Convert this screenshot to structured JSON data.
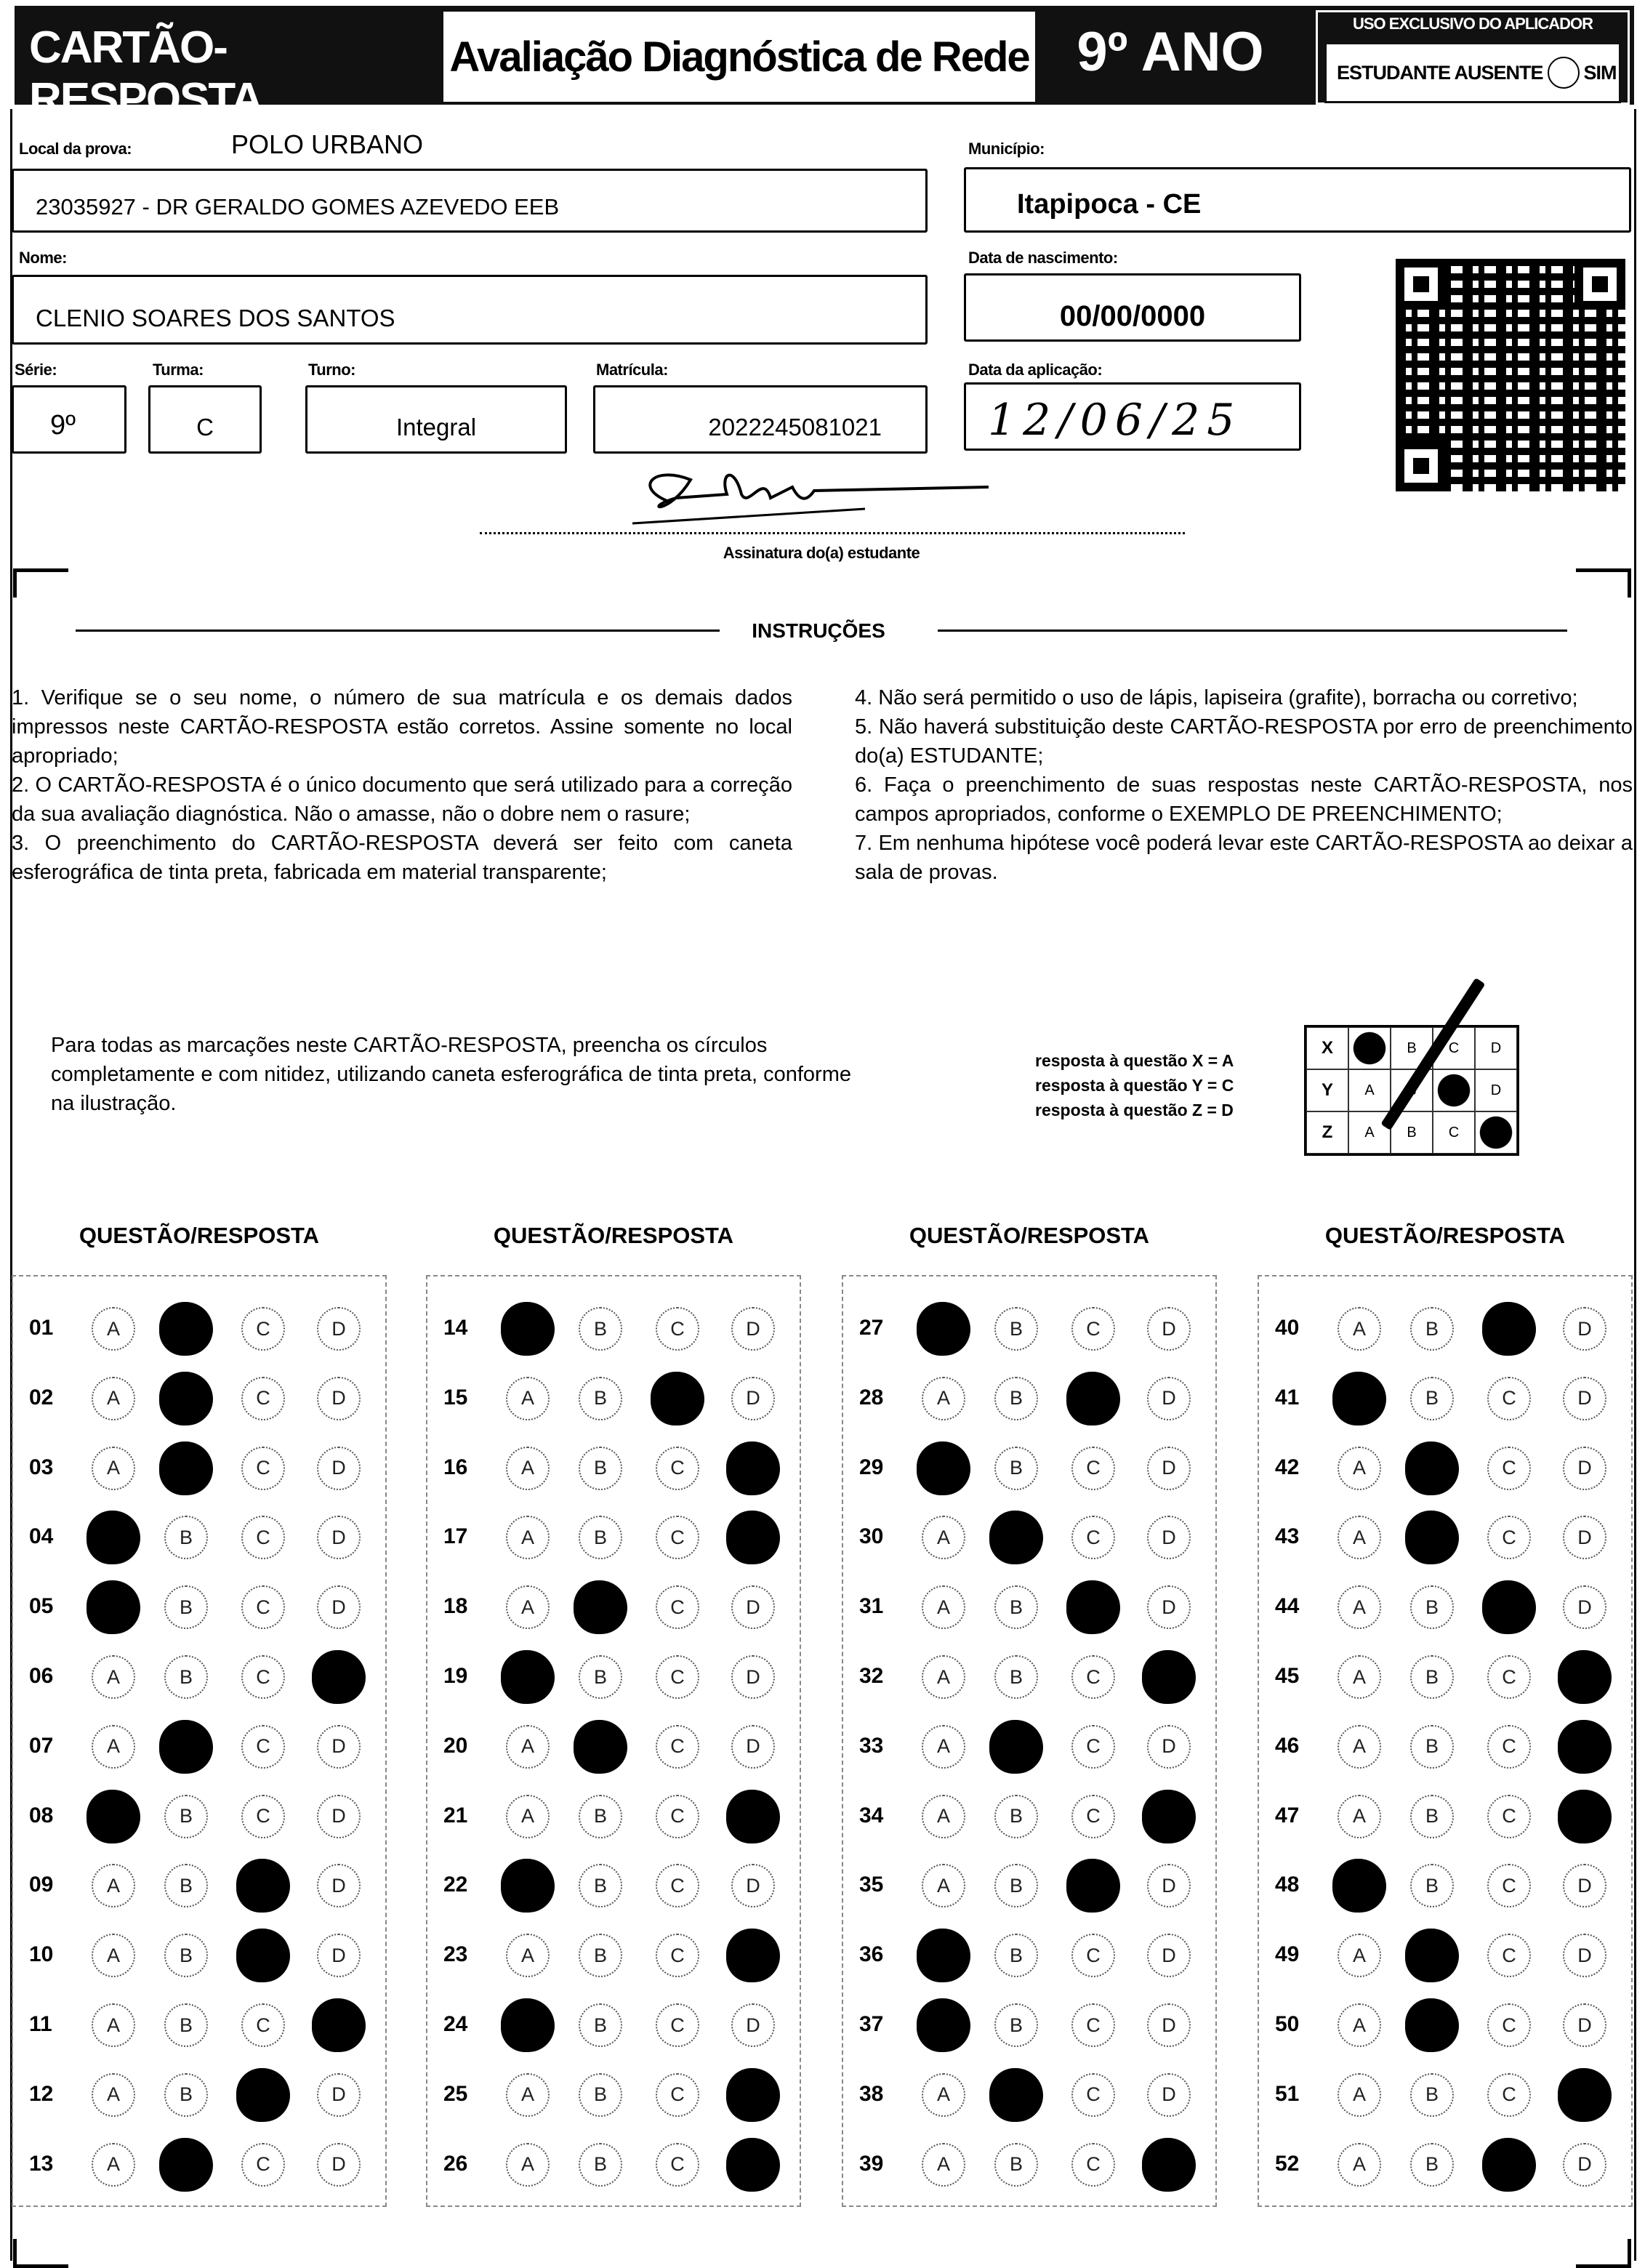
{
  "header": {
    "title": "CARTÃO-RESPOSTA",
    "exam": "Avaliação Diagnóstica de Rede",
    "grade": "9º ANO",
    "applicator_title": "USO EXCLUSIVO DO APLICADOR",
    "absent_label": "ESTUDANTE AUSENTE",
    "absent_option": "SIM"
  },
  "fields": {
    "local_label": "Local da prova:",
    "local_value": "POLO URBANO",
    "school": "23035927 - DR GERALDO GOMES AZEVEDO EEB",
    "municipio_label": "Município:",
    "municipio": "Itapipoca - CE",
    "nome_label": "Nome:",
    "nome": "CLENIO SOARES DOS SANTOS",
    "nascimento_label": "Data de nascimento:",
    "nascimento": "00/00/0000",
    "serie_label": "Série:",
    "serie": "9º",
    "turma_label": "Turma:",
    "turma": "C",
    "turno_label": "Turno:",
    "turno": "Integral",
    "matricula_label": "Matrícula:",
    "matricula": "2022245081021",
    "aplicacao_label": "Data da aplicação:",
    "aplicacao": "12/06/25",
    "assinatura_label": "Assinatura do(a) estudante"
  },
  "instructions": {
    "title": "INSTRUÇÕES",
    "left": "1. Verifique se o seu nome, o número de sua matrícula e os demais dados impressos neste CARTÃO-RESPOSTA estão corretos. Assine somente no local apropriado;\n2. O CARTÃO-RESPOSTA é o único documento que será utilizado para a correção da sua avaliação diagnóstica. Não o amasse, não o dobre nem o rasure;\n3. O preenchimento do CARTÃO-RESPOSTA deverá ser feito com caneta esferográfica de tinta preta, fabricada em material transparente;",
    "right": "4. Não será permitido o uso de lápis, lapiseira (grafite), borracha ou corretivo;\n5. Não haverá substituição deste CARTÃO-RESPOSTA por erro de preenchimento do(a) ESTUDANTE;\n6. Faça o preenchimento de suas respostas neste CARTÃO-RESPOSTA, nos campos apropriados, conforme o EXEMPLO DE PREENCHIMENTO;\n7. Em nenhuma hipótese você poderá levar este CARTÃO-RESPOSTA ao deixar a sala de provas.",
    "fill": "Para todas as marcações neste CARTÃO-RESPOSTA, preencha os círculos completamente e com nitidez, utilizando caneta esferográfica de tinta preta, conforme na ilustração.",
    "example_lines": [
      "resposta à questão X = A",
      "resposta à questão Y = C",
      "resposta à questão Z = D"
    ],
    "example_rows": [
      {
        "q": "X",
        "options": [
          "A",
          "B",
          "C",
          "D"
        ],
        "marked": "A"
      },
      {
        "q": "Y",
        "options": [
          "A",
          "B",
          "C",
          "D"
        ],
        "marked": "C"
      },
      {
        "q": "Z",
        "options": [
          "A",
          "B",
          "C",
          "D"
        ],
        "marked": "D"
      }
    ]
  },
  "answers": {
    "column_header": "QUESTÃO/RESPOSTA",
    "options": [
      "A",
      "B",
      "C",
      "D"
    ],
    "columns": [
      [
        [
          "01",
          "B"
        ],
        [
          "02",
          "B"
        ],
        [
          "03",
          "B"
        ],
        [
          "04",
          "A"
        ],
        [
          "05",
          "A"
        ],
        [
          "06",
          "D"
        ],
        [
          "07",
          "B"
        ],
        [
          "08",
          "A"
        ],
        [
          "09",
          "C"
        ],
        [
          "10",
          "C"
        ],
        [
          "11",
          "D"
        ],
        [
          "12",
          "C"
        ],
        [
          "13",
          "B"
        ]
      ],
      [
        [
          "14",
          "A"
        ],
        [
          "15",
          "C"
        ],
        [
          "16",
          "D"
        ],
        [
          "17",
          "D"
        ],
        [
          "18",
          "B"
        ],
        [
          "19",
          "A"
        ],
        [
          "20",
          "B"
        ],
        [
          "21",
          "D"
        ],
        [
          "22",
          "A"
        ],
        [
          "23",
          "D"
        ],
        [
          "24",
          "A"
        ],
        [
          "25",
          "D"
        ],
        [
          "26",
          "D"
        ]
      ],
      [
        [
          "27",
          "A"
        ],
        [
          "28",
          "C"
        ],
        [
          "29",
          "A"
        ],
        [
          "30",
          "B"
        ],
        [
          "31",
          "C"
        ],
        [
          "32",
          "D"
        ],
        [
          "33",
          "B"
        ],
        [
          "34",
          "D"
        ],
        [
          "35",
          "C"
        ],
        [
          "36",
          "A"
        ],
        [
          "37",
          "A"
        ],
        [
          "38",
          "B"
        ],
        [
          "39",
          "D"
        ]
      ],
      [
        [
          "40",
          "C"
        ],
        [
          "41",
          "A"
        ],
        [
          "42",
          "B"
        ],
        [
          "43",
          "B"
        ],
        [
          "44",
          "C"
        ],
        [
          "45",
          "D"
        ],
        [
          "46",
          "D"
        ],
        [
          "47",
          "D"
        ],
        [
          "48",
          "A"
        ],
        [
          "49",
          "B"
        ],
        [
          "50",
          "B"
        ],
        [
          "51",
          "D"
        ],
        [
          "52",
          "C"
        ]
      ]
    ]
  }
}
